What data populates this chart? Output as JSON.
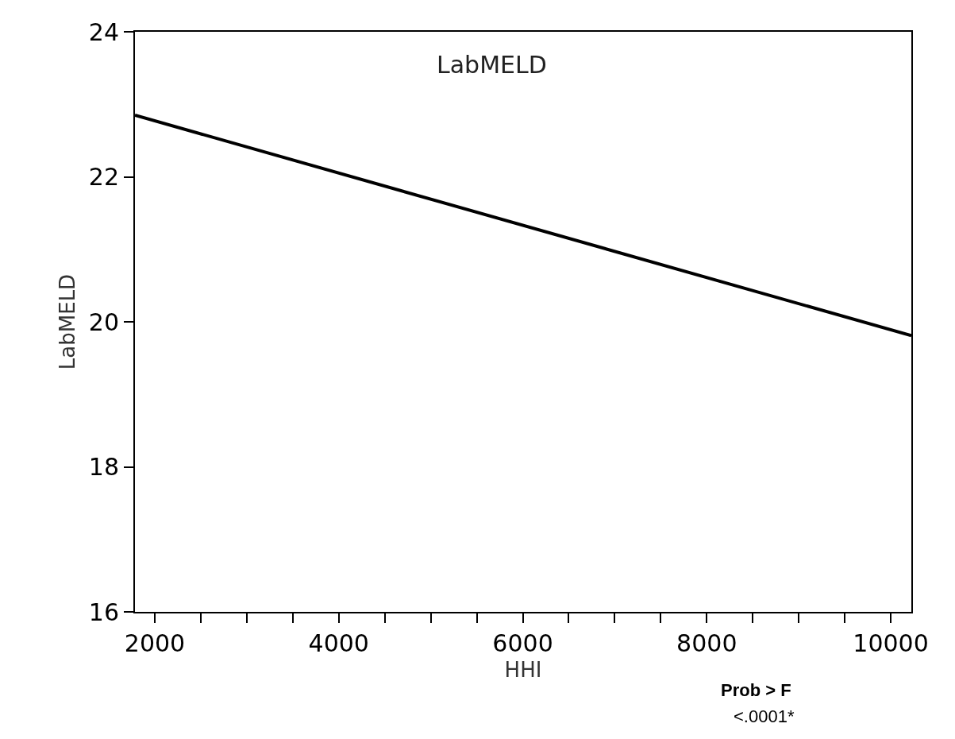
{
  "chart_data": {
    "type": "line",
    "title": "LabMELD",
    "xlabel": "HHI",
    "ylabel": "LabMELD",
    "x": [
      1784,
      10224
    ],
    "series": [
      {
        "color": "#000000",
        "values": [
          22.85,
          19.81
        ]
      }
    ],
    "xlim": [
      1784,
      10224
    ],
    "ylim": [
      16,
      24
    ],
    "xticks": [
      2000,
      {
        "value": 2500,
        "label": null
      },
      {
        "value": 3000,
        "label": null
      },
      {
        "value": 3500,
        "label": null
      },
      4000,
      {
        "value": 4500,
        "label": null
      },
      {
        "value": 5000,
        "label": null
      },
      {
        "value": 5500,
        "label": null
      },
      6000,
      {
        "value": 6500,
        "label": null
      },
      {
        "value": 7000,
        "label": null
      },
      {
        "value": 7500,
        "label": null
      },
      8000,
      {
        "value": 8500,
        "label": null
      },
      {
        "value": 9000,
        "label": null
      },
      {
        "value": 9500,
        "label": null
      },
      10000
    ],
    "yticks": [
      16,
      18,
      20,
      22,
      24
    ],
    "legend": false,
    "marker": "none",
    "line_style": "solid",
    "annotations": [
      "Prob > F",
      "<.0001*"
    ]
  }
}
